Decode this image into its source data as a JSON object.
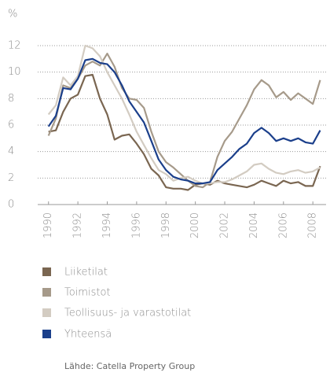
{
  "chart_data": {
    "type": "line",
    "y_label": "%",
    "x": [
      1990,
      1990.5,
      1991,
      1991.5,
      1992,
      1992.5,
      1993,
      1993.5,
      1994,
      1994.5,
      1995,
      1995.5,
      1996,
      1996.5,
      1997,
      1997.5,
      1998,
      1998.5,
      1999,
      1999.5,
      2000,
      2000.5,
      2001,
      2001.5,
      2002,
      2002.5,
      2003,
      2003.5,
      2004,
      2004.5,
      2005,
      2005.5,
      2006,
      2006.5,
      2007,
      2007.5,
      2008,
      2008.5
    ],
    "series": [
      {
        "name": "Liiketilat",
        "color": "#7a6651",
        "values": [
          5.5,
          5.6,
          7.0,
          8.0,
          8.3,
          9.7,
          9.8,
          8.0,
          6.8,
          4.9,
          5.2,
          5.3,
          4.6,
          3.8,
          2.7,
          2.2,
          1.3,
          1.2,
          1.2,
          1.1,
          1.5,
          1.6,
          1.5,
          1.8,
          1.6,
          1.5,
          1.4,
          1.3,
          1.5,
          1.8,
          1.6,
          1.4,
          1.8,
          1.6,
          1.7,
          1.4,
          1.4,
          2.9
        ]
      },
      {
        "name": "Toimistot",
        "color": "#a69a8a",
        "values": [
          5.2,
          6.5,
          9.0,
          8.8,
          9.5,
          10.5,
          10.8,
          10.5,
          11.4,
          10.4,
          8.8,
          8.0,
          7.9,
          7.3,
          5.5,
          4.0,
          3.2,
          2.8,
          2.3,
          1.8,
          1.4,
          1.3,
          1.7,
          3.6,
          4.8,
          5.5,
          6.5,
          7.5,
          8.7,
          9.4,
          9.0,
          8.1,
          8.5,
          7.9,
          8.4,
          8.0,
          7.6,
          9.4
        ]
      },
      {
        "name": "Teollisuus- ja varastotilat",
        "color": "#d3ccc2",
        "values": [
          6.8,
          7.5,
          9.6,
          9.0,
          9.7,
          12.0,
          11.8,
          11.2,
          10.0,
          9.0,
          8.0,
          6.8,
          5.5,
          4.5,
          3.5,
          2.6,
          2.3,
          1.8,
          2.0,
          2.1,
          1.8,
          1.6,
          1.6,
          1.7,
          1.7,
          1.9,
          2.2,
          2.5,
          3.0,
          3.1,
          2.7,
          2.4,
          2.3,
          2.5,
          2.6,
          2.4,
          2.5,
          2.8
        ]
      },
      {
        "name": "Yhteensä",
        "color": "#1b3f8b",
        "values": [
          5.9,
          6.7,
          8.8,
          8.7,
          9.5,
          10.9,
          11.0,
          10.7,
          10.6,
          10.0,
          9.0,
          7.8,
          7.0,
          6.2,
          4.8,
          3.4,
          2.6,
          2.1,
          1.9,
          1.8,
          1.6,
          1.6,
          1.7,
          2.6,
          3.1,
          3.6,
          4.2,
          4.6,
          5.4,
          5.8,
          5.4,
          4.8,
          5.0,
          4.8,
          5.0,
          4.7,
          4.6,
          5.6
        ]
      }
    ],
    "xlim": [
      1989.8,
      2008.9
    ],
    "xticks": [
      1990,
      1992,
      1994,
      1996,
      1998,
      2000,
      2002,
      2004,
      2006,
      2008
    ],
    "ylim": [
      0,
      12
    ],
    "yticks": [
      0,
      2,
      4,
      6,
      8,
      10,
      12
    ],
    "grid": true,
    "source": "Lähde: Catella Property Group"
  }
}
